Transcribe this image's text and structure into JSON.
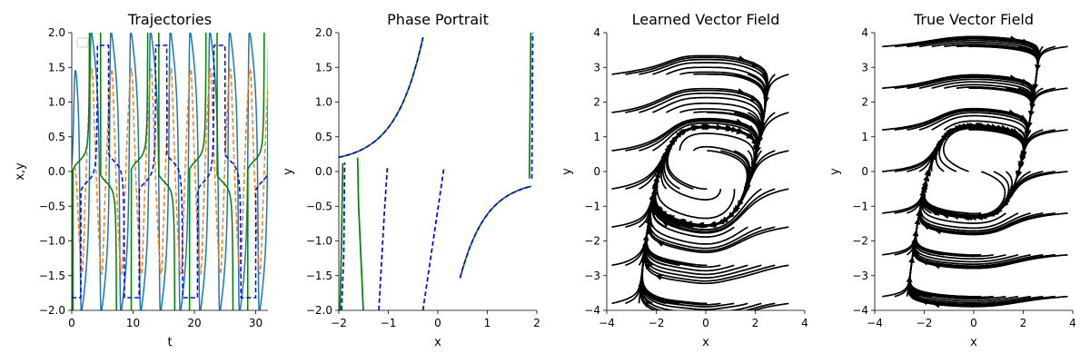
{
  "chart_data": [
    {
      "type": "line",
      "title": "Trajectories",
      "xlabel": "t",
      "ylabel": "x,y",
      "xlim": [
        0,
        32
      ],
      "ylim": [
        -2,
        2
      ],
      "xticks": [
        0,
        10,
        20,
        30
      ],
      "yticks": [
        -2.0,
        -1.5,
        -1.0,
        -0.5,
        0.0,
        0.5,
        1.0,
        1.5,
        2.0
      ],
      "legend": "top-left (empty)",
      "grid": false,
      "series_colors": [
        "#1f77b4",
        "#ff7f0e",
        "#008000",
        "#0000ff"
      ],
      "series_styles": [
        "solid",
        "dashed",
        "solid",
        "dashed"
      ],
      "period": 9.5,
      "spike_times": [
        0.9,
        5.3,
        10.8,
        14.8,
        22.3,
        27.7
      ]
    },
    {
      "type": "line",
      "title": "Phase Portrait",
      "xlabel": "x",
      "ylabel": "y",
      "xlim": [
        -2,
        2
      ],
      "ylim": [
        -2,
        2
      ],
      "xticks": [
        -2,
        -1,
        0,
        1,
        2
      ],
      "yticks": [
        -2.0,
        -1.5,
        -1.0,
        -0.5,
        0.0,
        0.5,
        1.0,
        1.5,
        2.0
      ],
      "grid": false,
      "series_colors": [
        "#008000",
        "#0000ff"
      ],
      "series_styles": [
        "solid",
        "dashed"
      ]
    },
    {
      "type": "streamplot",
      "title": "Learned Vector Field",
      "xlabel": "x",
      "ylabel": "y",
      "xlim": [
        -4,
        4
      ],
      "ylim": [
        -4,
        4
      ],
      "xticks": [
        -4,
        -2,
        0,
        2,
        4
      ],
      "yticks": [
        -4,
        -3,
        -2,
        -1,
        0,
        1,
        2,
        3,
        4
      ],
      "color": "#000000"
    },
    {
      "type": "streamplot",
      "title": "True Vector Field",
      "xlabel": "x",
      "ylabel": "y",
      "xlim": [
        -4,
        4
      ],
      "ylim": [
        -4,
        4
      ],
      "xticks": [
        -4,
        -2,
        0,
        2,
        4
      ],
      "yticks": [
        -4,
        -3,
        -2,
        -1,
        0,
        1,
        2,
        3,
        4
      ],
      "color": "#000000"
    }
  ]
}
